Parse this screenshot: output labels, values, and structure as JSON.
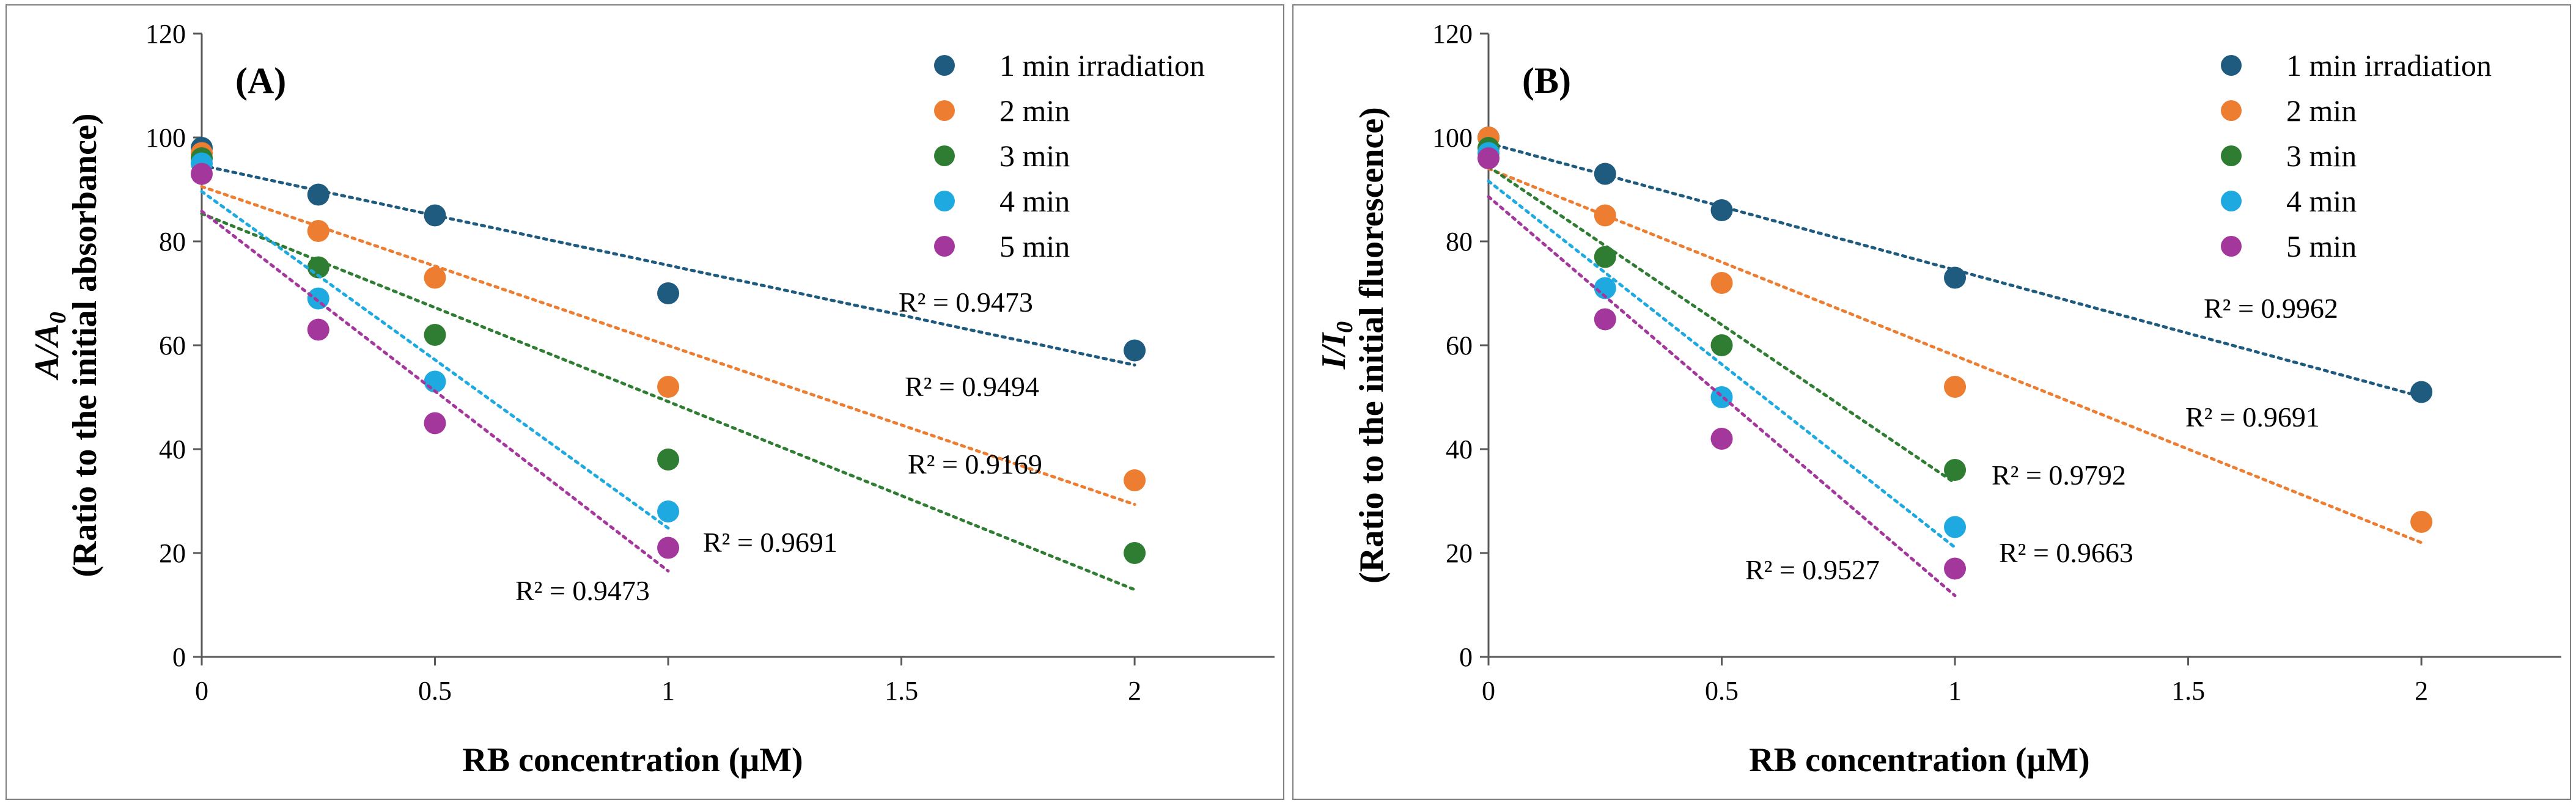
{
  "chart_data": [
    {
      "type": "scatter",
      "panel_label": "(A)",
      "xlabel": "RB concentration (μM)",
      "ylabel_line1_italic": "A/A",
      "ylabel_line1_sub": "0",
      "ylabel_line2": "(Ratio to the initial absorbance)",
      "xlim": [
        0,
        2.3
      ],
      "ylim": [
        0,
        120
      ],
      "x_ticks": [
        0,
        0.5,
        1,
        1.5,
        2
      ],
      "x_tick_labels": [
        "0",
        "0.5",
        "1",
        "1.5",
        "2"
      ],
      "y_ticks": [
        0,
        20,
        40,
        60,
        80,
        100,
        120
      ],
      "y_tick_labels": [
        "0",
        "20",
        "40",
        "60",
        "80",
        "100",
        "120"
      ],
      "grid": false,
      "legend_position": "top-right",
      "trendline": "linear, dotted",
      "series": [
        {
          "name": "1 min irradiation",
          "color": "#1f5b7f",
          "x": [
            0,
            0.25,
            0.5,
            1,
            2
          ],
          "y": [
            98,
            89,
            85,
            70,
            59
          ],
          "r2": "R² = 0.9473"
        },
        {
          "name": "2 min",
          "color": "#ed7d31",
          "x": [
            0,
            0.25,
            0.5,
            1,
            2
          ],
          "y": [
            97,
            82,
            73,
            52,
            34
          ],
          "r2": "R² = 0.9494"
        },
        {
          "name": "3 min",
          "color": "#2e7d32",
          "x": [
            0,
            0.25,
            0.5,
            1,
            2
          ],
          "y": [
            96,
            75,
            62,
            38,
            20
          ],
          "r2": "R² = 0.9169"
        },
        {
          "name": "4 min",
          "color": "#1fa9e1",
          "x": [
            0,
            0.25,
            0.5,
            1
          ],
          "y": [
            95,
            69,
            53,
            28
          ],
          "r2": "R² = 0.9691"
        },
        {
          "name": "5 min",
          "color": "#a4379b",
          "x": [
            0,
            0.25,
            0.5,
            1
          ],
          "y": [
            93,
            63,
            45,
            21
          ],
          "r2": "R² = 0.9473"
        }
      ]
    },
    {
      "type": "scatter",
      "panel_label": "(B)",
      "xlabel": "RB concentration (μM)",
      "ylabel_line1_italic": "I/I",
      "ylabel_line1_sub": "0",
      "ylabel_line2": "(Ratio to the initial fluorescence)",
      "xlim": [
        0,
        2.3
      ],
      "ylim": [
        0,
        120
      ],
      "x_ticks": [
        0,
        0.5,
        1,
        1.5,
        2
      ],
      "x_tick_labels": [
        "0",
        "0.5",
        "1",
        "1.5",
        "2"
      ],
      "y_ticks": [
        0,
        20,
        40,
        60,
        80,
        100,
        120
      ],
      "y_tick_labels": [
        "0",
        "20",
        "40",
        "60",
        "80",
        "100",
        "120"
      ],
      "grid": false,
      "legend_position": "top-right",
      "trendline": "linear, dotted",
      "series": [
        {
          "name": "1 min irradiation",
          "color": "#1f5b7f",
          "x": [
            0,
            0.25,
            0.5,
            1,
            2
          ],
          "y": [
            100,
            93,
            86,
            73,
            51
          ],
          "r2": "R² = 0.9962"
        },
        {
          "name": "2 min",
          "color": "#ed7d31",
          "x": [
            0,
            0.25,
            0.5,
            1,
            2
          ],
          "y": [
            100,
            85,
            72,
            52,
            26
          ],
          "r2": "R² = 0.9691"
        },
        {
          "name": "3 min",
          "color": "#2e7d32",
          "x": [
            0,
            0.25,
            0.5,
            1
          ],
          "y": [
            98,
            77,
            60,
            36
          ],
          "r2": "R² = 0.9792"
        },
        {
          "name": "4 min",
          "color": "#1fa9e1",
          "x": [
            0,
            0.25,
            0.5,
            1
          ],
          "y": [
            97,
            71,
            50,
            25
          ],
          "r2": "R² = 0.9663"
        },
        {
          "name": "5 min",
          "color": "#a4379b",
          "x": [
            0,
            0.25,
            0.5,
            1
          ],
          "y": [
            96,
            65,
            42,
            17
          ],
          "r2": "R² = 0.9527"
        }
      ]
    }
  ]
}
